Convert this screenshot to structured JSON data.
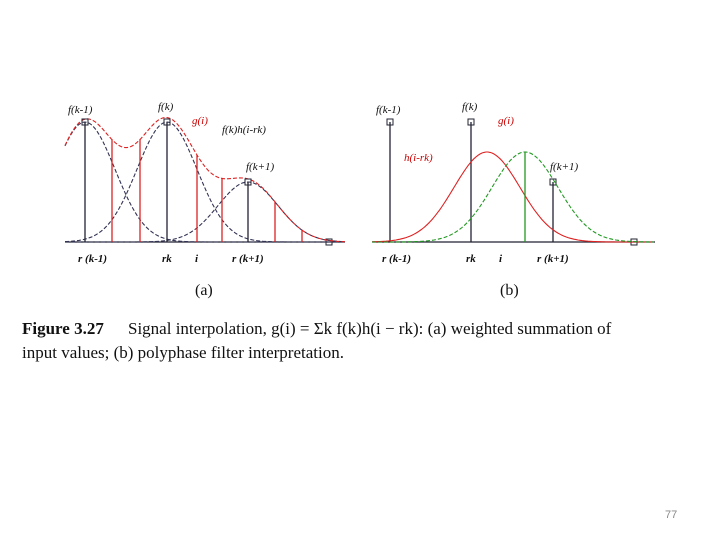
{
  "figure": {
    "panel_a": {
      "labels": [
        "f(k-1)",
        "f(k)",
        "g(i)",
        "f(k)h(i-rk)",
        "f(k+1)"
      ],
      "axis": [
        "r (k-1)",
        "rk",
        "i",
        "r (k+1)"
      ],
      "tag": "(a)"
    },
    "panel_b": {
      "labels": [
        "f(k-1)",
        "f(k)",
        "g(i)",
        "h(i-rk)",
        "f(k+1)"
      ],
      "axis": [
        "r (k-1)",
        "rk",
        "i",
        "r (k+1)"
      ],
      "tag": "(b)"
    },
    "caption": {
      "label": "Figure 3.27",
      "line1": "Signal interpolation, g(i) = Σk f(k)h(i − rk):  (a) weighted summation of",
      "line2": "input values; (b) polyphase filter interpretation."
    }
  },
  "page_number": "77"
}
